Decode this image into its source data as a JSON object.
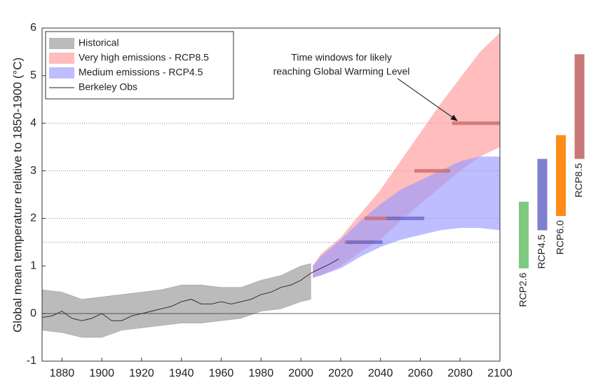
{
  "chart_data": {
    "type": "area",
    "ylabel": "Global mean temperature relative to 1850-1900 (°C)",
    "xlim": [
      1870,
      2100
    ],
    "ylim": [
      -1,
      6
    ],
    "xticks": [
      1880,
      1900,
      1920,
      1940,
      1960,
      1980,
      2000,
      2020,
      2040,
      2060,
      2080,
      2100
    ],
    "yticks": [
      -1,
      0,
      1,
      2,
      3,
      4,
      5,
      6
    ],
    "ref_lines": [
      1.5,
      2,
      3,
      4
    ],
    "bands": [
      {
        "name": "Historical",
        "color": "#b4b4b4",
        "x": [
          1870,
          1880,
          1890,
          1900,
          1910,
          1920,
          1930,
          1940,
          1950,
          1960,
          1970,
          1980,
          1990,
          2000,
          2005
        ],
        "lower": [
          -0.35,
          -0.4,
          -0.5,
          -0.5,
          -0.35,
          -0.3,
          -0.25,
          -0.2,
          -0.2,
          -0.15,
          -0.1,
          0.05,
          0.1,
          0.25,
          0.3
        ],
        "upper": [
          0.5,
          0.45,
          0.3,
          0.35,
          0.4,
          0.45,
          0.5,
          0.6,
          0.6,
          0.55,
          0.55,
          0.7,
          0.8,
          1.0,
          1.05
        ]
      },
      {
        "name": "Very high emissions - RCP8.5",
        "color": "#ff9a9a",
        "x": [
          2006,
          2010,
          2020,
          2030,
          2040,
          2050,
          2060,
          2070,
          2080,
          2090,
          2100
        ],
        "lower": [
          0.75,
          0.8,
          1.0,
          1.3,
          1.55,
          1.95,
          2.3,
          2.65,
          3.0,
          3.3,
          3.5
        ],
        "upper": [
          1.0,
          1.25,
          1.6,
          2.1,
          2.6,
          3.2,
          3.8,
          4.4,
          4.95,
          5.5,
          5.9
        ]
      },
      {
        "name": "Medium emissions - RCP4.5",
        "color": "#9a9aff",
        "x": [
          2006,
          2010,
          2020,
          2030,
          2040,
          2050,
          2060,
          2070,
          2080,
          2090,
          2100
        ],
        "lower": [
          0.75,
          0.8,
          0.95,
          1.2,
          1.4,
          1.55,
          1.65,
          1.75,
          1.8,
          1.8,
          1.75
        ],
        "upper": [
          1.0,
          1.2,
          1.55,
          1.95,
          2.3,
          2.6,
          2.8,
          3.0,
          3.2,
          3.3,
          3.3
        ]
      }
    ],
    "line": {
      "name": "Berkeley Obs",
      "color": "#222222",
      "x": [
        1870,
        1875,
        1880,
        1885,
        1890,
        1895,
        1900,
        1905,
        1910,
        1915,
        1920,
        1925,
        1930,
        1935,
        1940,
        1945,
        1950,
        1955,
        1960,
        1965,
        1970,
        1975,
        1980,
        1985,
        1990,
        1995,
        2000,
        2005,
        2010,
        2015,
        2019
      ],
      "values": [
        -0.08,
        -0.05,
        0.05,
        -0.1,
        -0.15,
        -0.1,
        0.0,
        -0.15,
        -0.15,
        -0.05,
        0.0,
        0.05,
        0.1,
        0.15,
        0.25,
        0.3,
        0.2,
        0.2,
        0.25,
        0.2,
        0.25,
        0.3,
        0.4,
        0.45,
        0.55,
        0.6,
        0.7,
        0.85,
        0.95,
        1.05,
        1.15
      ]
    },
    "windows": [
      {
        "color": "#cd7070",
        "level": 1.5,
        "start": 2022,
        "end": 2037
      },
      {
        "color": "#cd7070",
        "level": 2,
        "start": 2032,
        "end": 2050
      },
      {
        "color": "#cd7070",
        "level": 3,
        "start": 2057,
        "end": 2075
      },
      {
        "color": "#cd7070",
        "level": 4,
        "start": 2076,
        "end": 2100
      },
      {
        "color": "#6f6fcd",
        "level": 1.5,
        "start": 2023,
        "end": 2041
      },
      {
        "color": "#6f6fcd",
        "level": 2,
        "start": 2043,
        "end": 2062
      }
    ],
    "annotation": [
      "Time windows for likely",
      "reaching Global Warming Level"
    ],
    "scenario_ranges": [
      {
        "name": "RCP2.6",
        "color": "#7fc97f",
        "low": 0.95,
        "high": 2.35
      },
      {
        "name": "RCP4.5",
        "color": "#7f7fcf",
        "low": 1.75,
        "high": 3.25
      },
      {
        "name": "RCP6.0",
        "color": "#ff8c1a",
        "low": 2.05,
        "high": 3.75
      },
      {
        "name": "RCP8.5",
        "color": "#c97878",
        "low": 3.25,
        "high": 5.45
      }
    ]
  }
}
